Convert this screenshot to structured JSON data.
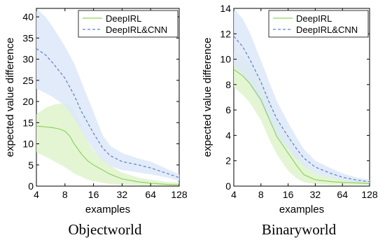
{
  "chart_data": [
    {
      "type": "line",
      "caption": "Objectworld",
      "xlabel": "examples",
      "ylabel": "expected value difference",
      "x_scale": "log2",
      "xlim": [
        4,
        128
      ],
      "ylim": [
        0,
        42
      ],
      "x_ticks": [
        4,
        8,
        16,
        32,
        64,
        128
      ],
      "y_ticks": [
        0,
        5,
        10,
        15,
        20,
        25,
        30,
        35,
        40
      ],
      "grid": false,
      "legend": "top-right",
      "series": [
        {
          "name": "DeepIRL",
          "color": "#8fd45a",
          "band_color": "#dff3cc",
          "style": "solid",
          "x": [
            4,
            5,
            6,
            7,
            8,
            9,
            10,
            12,
            14,
            16,
            20,
            24,
            32,
            48,
            64,
            96,
            128
          ],
          "mean": [
            14.2,
            14.0,
            13.8,
            13.5,
            13.0,
            11.8,
            10.0,
            7.5,
            5.9,
            5.0,
            3.8,
            2.8,
            1.7,
            1.0,
            0.7,
            0.4,
            0.3
          ],
          "lower": [
            8.0,
            7.0,
            6.0,
            5.2,
            4.5,
            3.7,
            3.0,
            2.2,
            1.5,
            1.2,
            0.8,
            0.5,
            0.3,
            0.2,
            0.1,
            0.1,
            0.1
          ],
          "upper": [
            17.0,
            18.5,
            19.2,
            19.5,
            19.5,
            19.0,
            18.0,
            14.0,
            10.5,
            8.3,
            6.5,
            4.8,
            3.2,
            2.0,
            1.5,
            1.0,
            0.8
          ]
        },
        {
          "name": "DeepIRL&CNN",
          "color": "#5a7fc8",
          "band_color": "#dde7f8",
          "style": "dashed",
          "x": [
            4,
            5,
            6,
            8,
            10,
            12,
            16,
            20,
            24,
            32,
            48,
            64,
            96,
            128
          ],
          "mean": [
            32.5,
            31.0,
            29.0,
            25.5,
            21.5,
            17.5,
            12.5,
            9.0,
            7.2,
            5.8,
            5.0,
            4.3,
            3.0,
            2.0
          ],
          "lower": [
            23.0,
            22.0,
            21.0,
            19.0,
            16.0,
            13.0,
            8.5,
            6.0,
            4.7,
            3.8,
            3.2,
            2.8,
            2.0,
            1.3
          ],
          "upper": [
            42.0,
            40.0,
            37.5,
            33.0,
            29.0,
            24.5,
            17.5,
            12.0,
            9.5,
            7.8,
            6.5,
            5.8,
            4.0,
            2.8
          ]
        }
      ]
    },
    {
      "type": "line",
      "caption": "Binaryworld",
      "xlabel": "examples",
      "ylabel": "expected value difference",
      "x_scale": "log2",
      "xlim": [
        4,
        128
      ],
      "ylim": [
        0,
        14
      ],
      "x_ticks": [
        4,
        8,
        16,
        32,
        64,
        128
      ],
      "y_ticks": [
        0,
        2,
        4,
        6,
        8,
        10,
        12,
        14
      ],
      "grid": false,
      "legend": "top-right",
      "series": [
        {
          "name": "DeepIRL",
          "color": "#8fd45a",
          "band_color": "#dff3cc",
          "style": "solid",
          "x": [
            4,
            5,
            6,
            8,
            10,
            12,
            16,
            20,
            24,
            32,
            48,
            64,
            96,
            128
          ],
          "mean": [
            9.2,
            8.7,
            8.1,
            6.8,
            5.2,
            3.9,
            2.6,
            1.6,
            0.9,
            0.5,
            0.35,
            0.3,
            0.25,
            0.2
          ],
          "lower": [
            7.8,
            7.2,
            6.6,
            5.2,
            3.6,
            2.5,
            1.2,
            0.6,
            0.3,
            0.15,
            0.1,
            0.1,
            0.1,
            0.1
          ],
          "upper": [
            10.6,
            10.2,
            9.7,
            8.4,
            6.8,
            5.3,
            4.0,
            2.8,
            1.8,
            1.0,
            0.7,
            0.6,
            0.5,
            0.4
          ]
        },
        {
          "name": "DeepIRL&CNN",
          "color": "#5a7fc8",
          "band_color": "#dde7f8",
          "style": "dashed",
          "x": [
            4,
            5,
            6,
            8,
            10,
            12,
            16,
            20,
            24,
            32,
            48,
            64,
            96,
            128
          ],
          "mean": [
            11.8,
            11.0,
            10.0,
            8.2,
            6.5,
            5.3,
            3.9,
            2.9,
            2.2,
            1.5,
            1.0,
            0.7,
            0.45,
            0.35
          ],
          "lower": [
            9.5,
            8.8,
            8.0,
            6.5,
            5.0,
            4.0,
            2.9,
            2.1,
            1.6,
            1.0,
            0.65,
            0.45,
            0.3,
            0.2
          ],
          "upper": [
            14.0,
            13.2,
            12.1,
            9.9,
            8.1,
            6.7,
            5.0,
            3.8,
            2.9,
            2.0,
            1.4,
            1.0,
            0.65,
            0.5
          ]
        }
      ]
    }
  ]
}
